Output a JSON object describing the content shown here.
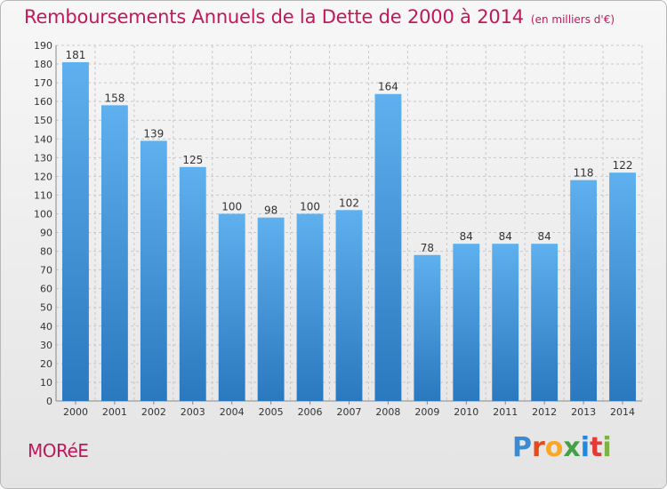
{
  "header": {
    "title": "Remboursements Annuels de la Dette de 2000 à 2014",
    "subtitle": "(en milliers d'€)"
  },
  "footer": {
    "town": "MORéE",
    "logo_letters": [
      "P",
      "r",
      "o",
      "x",
      "i",
      "t",
      "i"
    ],
    "logo_colors": [
      "#3a8ad6",
      "#e64a19",
      "#f9a825",
      "#43a047",
      "#1e88e5",
      "#e53935",
      "#7cb342"
    ]
  },
  "colors": {
    "title": "#c2185b",
    "bar_top": "#5fb0ee",
    "bar_bottom": "#2a78be",
    "grid": "#c8c8c8"
  },
  "chart_data": {
    "type": "bar",
    "title": "Remboursements Annuels de la Dette de 2000 à 2014",
    "subtitle": "(en milliers d'€)",
    "categories": [
      "2000",
      "2001",
      "2002",
      "2003",
      "2004",
      "2005",
      "2006",
      "2007",
      "2008",
      "2009",
      "2010",
      "2011",
      "2012",
      "2013",
      "2014"
    ],
    "values": [
      181,
      158,
      139,
      125,
      100,
      98,
      100,
      102,
      164,
      78,
      84,
      84,
      84,
      118,
      122
    ],
    "ylim": [
      0,
      190
    ],
    "yticks": [
      0,
      10,
      20,
      30,
      40,
      50,
      60,
      70,
      80,
      90,
      100,
      110,
      120,
      130,
      140,
      150,
      160,
      170,
      180,
      190
    ],
    "grid": true,
    "xlabel": "",
    "ylabel": ""
  }
}
